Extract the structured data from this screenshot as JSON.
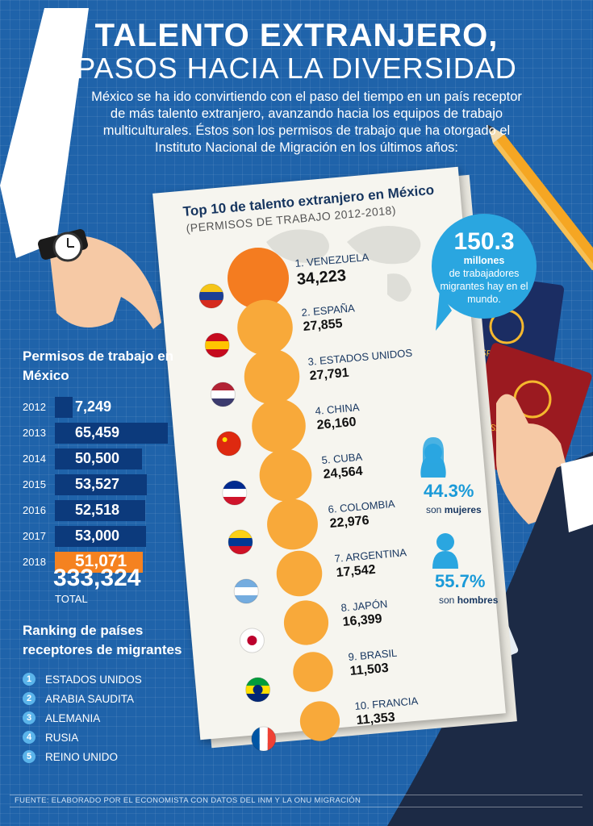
{
  "header": {
    "title_line1": "TALENTO EXTRANJERO,",
    "title_line2": "PASOS HACIA LA DIVERSIDAD",
    "intro": "México se ha ido convirtiendo con el paso del tiempo en un país receptor de más talento extranjero, avanzando hacia los equipos de trabajo multiculturales. Éstos son los permisos de trabajo que ha otorgado el Instituto Nacional de Migración en los últimos años:"
  },
  "top10": {
    "title": "Top 10 de talento extranjero en México",
    "subtitle": "(PERMISOS DE TRABAJO 2012-2018)",
    "highlight_color": "#f47c20",
    "circle_color": "#f8a93a",
    "items": [
      {
        "label": "1. VENEZUELA",
        "value": "34,223",
        "num": 34223,
        "flag": "venezuela-flag-icon"
      },
      {
        "label": "2. ESPAÑA",
        "value": "27,855",
        "num": 27855,
        "flag": "spain-flag-icon"
      },
      {
        "label": "3. ESTADOS UNIDOS",
        "value": "27,791",
        "num": 27791,
        "flag": "usa-flag-icon"
      },
      {
        "label": "4. CHINA",
        "value": "26,160",
        "num": 26160,
        "flag": "china-flag-icon"
      },
      {
        "label": "5. CUBA",
        "value": "24,564",
        "num": 24564,
        "flag": "cuba-flag-icon"
      },
      {
        "label": "6. COLOMBIA",
        "value": "22,976",
        "num": 22976,
        "flag": "colombia-flag-icon"
      },
      {
        "label": "7. ARGENTINA",
        "value": "17,542",
        "num": 17542,
        "flag": "argentina-flag-icon"
      },
      {
        "label": "8. JAPÓN",
        "value": "16,399",
        "num": 16399,
        "flag": "japan-flag-icon"
      },
      {
        "label": "9. BRASIL",
        "value": "11,503",
        "num": 11503,
        "flag": "brazil-flag-icon"
      },
      {
        "label": "10. FRANCIA",
        "value": "11,353",
        "num": 11353,
        "flag": "france-flag-icon"
      }
    ]
  },
  "bubble": {
    "number": "150.3",
    "unit": "millones",
    "text": "de trabajadores migrantes hay en el mundo."
  },
  "gender": {
    "women_pct": "44.3%",
    "women_prefix": "son",
    "women_word": "mujeres",
    "men_pct": "55.7%",
    "men_prefix": "son",
    "men_word": "hombres"
  },
  "permits": {
    "title": "Permisos  de trabajo en México",
    "bar_color": "#0c3a7c",
    "highlight_color": "#f58220",
    "rows": [
      {
        "year": "2012",
        "value": "7,249",
        "num": 7249
      },
      {
        "year": "2013",
        "value": "65,459",
        "num": 65459
      },
      {
        "year": "2014",
        "value": "50,500",
        "num": 50500
      },
      {
        "year": "2015",
        "value": "53,527",
        "num": 53527
      },
      {
        "year": "2016",
        "value": "52,518",
        "num": 52518
      },
      {
        "year": "2017",
        "value": "53,000",
        "num": 53000
      },
      {
        "year": "2018",
        "value": "51,071",
        "num": 51071,
        "highlight": true
      }
    ],
    "total": "333,324",
    "total_label": "TOTAL"
  },
  "ranking": {
    "title": "Ranking de países receptores de migrantes",
    "items": [
      {
        "num": "1",
        "label": "ESTADOS UNIDOS"
      },
      {
        "num": "2",
        "label": "ARABIA SAUDITA"
      },
      {
        "num": "3",
        "label": "ALEMANIA"
      },
      {
        "num": "4",
        "label": "RUSIA"
      },
      {
        "num": "5",
        "label": "REINO UNIDO"
      }
    ]
  },
  "footer": {
    "source": "FUENTE: ELABORADO POR EL ECONOMISTA CON DATOS DEL INM Y LA ONU MIGRACIÓN"
  }
}
